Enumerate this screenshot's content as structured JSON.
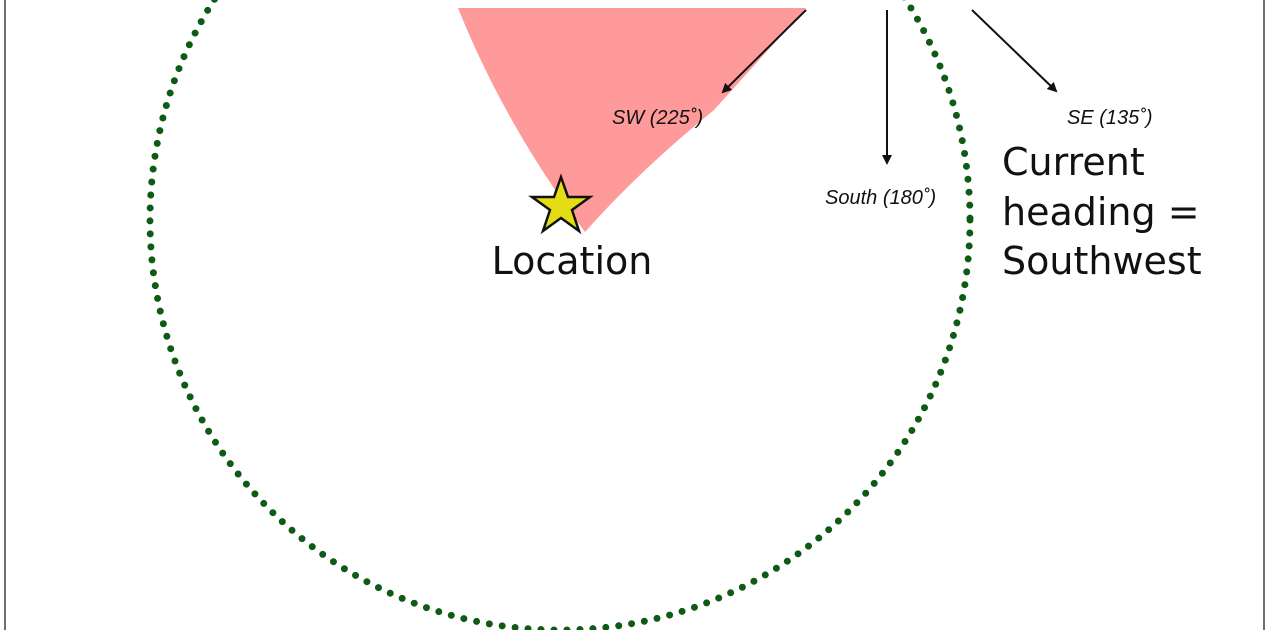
{
  "colors": {
    "frame": "#6e6e6e",
    "circle": "#0f5a14",
    "cone": "#ff9a9a",
    "arrow": "#111111",
    "star_fill": "#e4dc14",
    "star_stroke": "#111111"
  },
  "labels": {
    "sw": "SW (225˚)",
    "se": "SE (135˚)",
    "south": "South (180˚)",
    "location": "Location",
    "heading_line1": "Current",
    "heading_line2": "heading =",
    "heading_line3": "Southwest"
  },
  "icons": {
    "marker": "star-icon"
  }
}
